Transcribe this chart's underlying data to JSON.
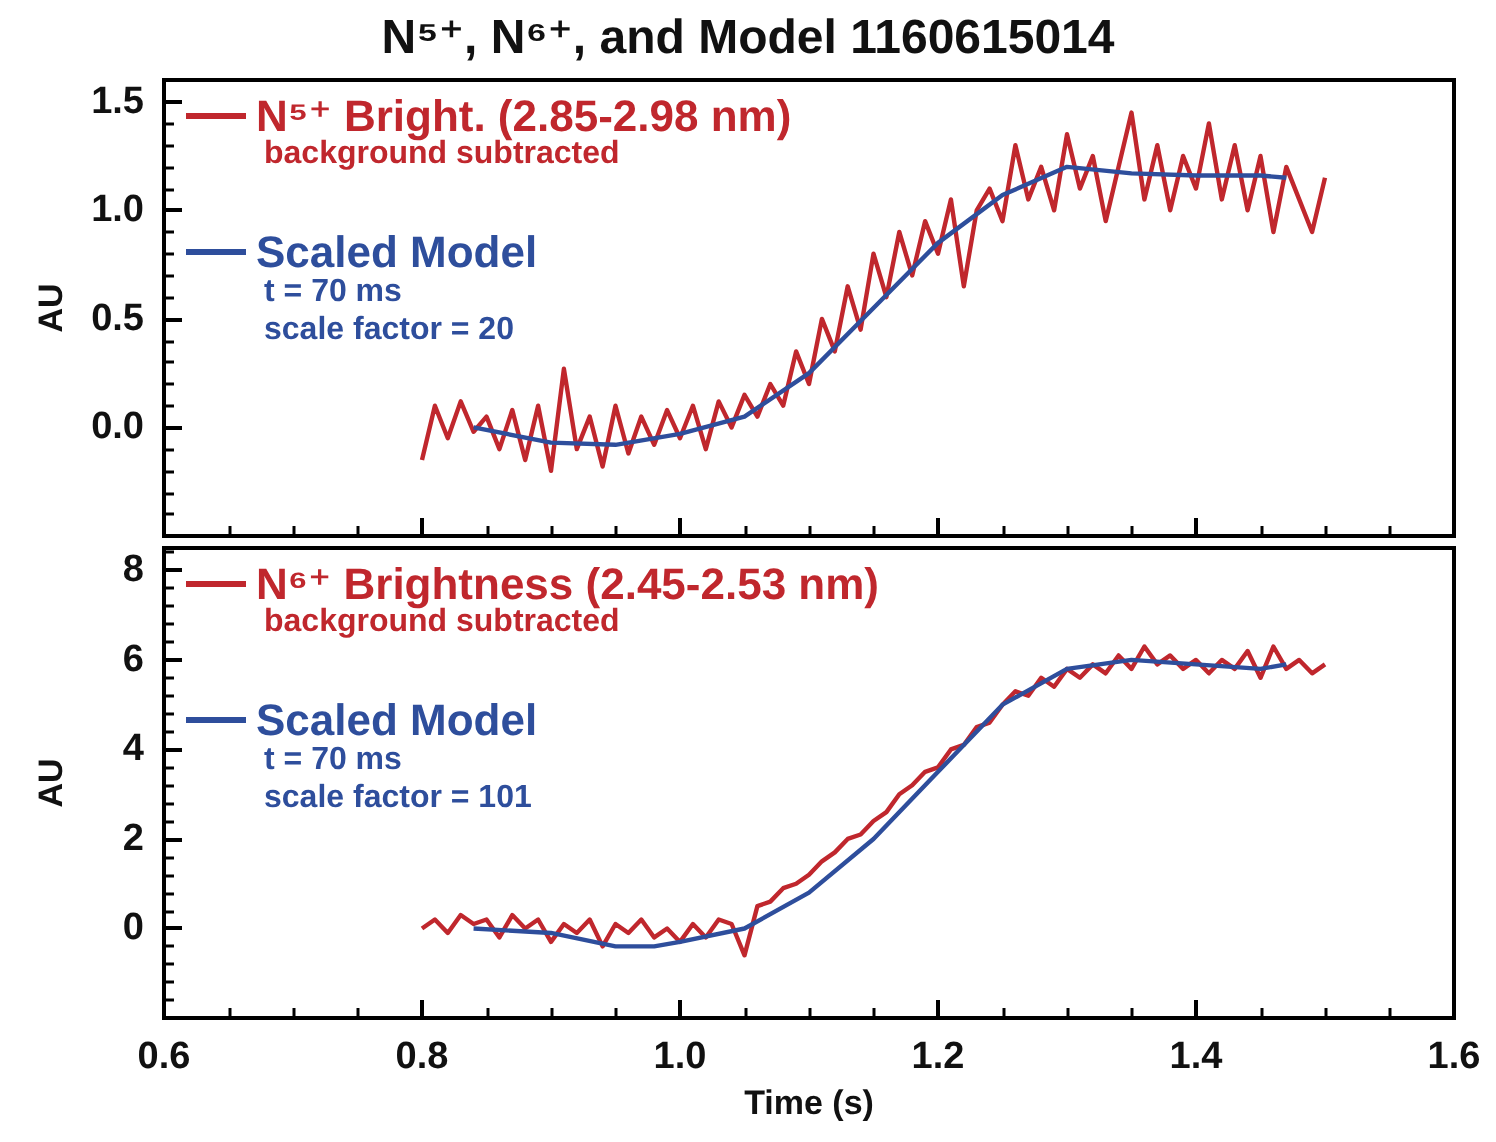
{
  "chart_data": [
    {
      "type": "line",
      "title": "N⁵⁺, N⁶⁺, and Model 1160615014",
      "ylabel": "AU",
      "xlim": [
        0.6,
        1.6
      ],
      "xticks": [
        0.6,
        0.8,
        1,
        1.2,
        1.4,
        1.6
      ],
      "ylim": [
        -0.5,
        1.6
      ],
      "yticks": [
        {
          "value": 0,
          "label": "0.0"
        },
        0.5,
        {
          "value": 1,
          "label": "1.0"
        },
        1.5
      ],
      "tick_labels": "y",
      "grid": false,
      "legend": "top left",
      "marker": "none",
      "line_style": "solid",
      "annotations": [
        "background subtracted",
        "t = 70 ms",
        "scale factor = 20"
      ],
      "series": [
        {
          "name": "N⁵⁺ Bright. (2.85-2.98 nm)",
          "color": "#c0272d",
          "x": [
            0.8,
            0.81,
            0.82,
            0.83,
            0.84,
            0.85,
            0.86,
            0.87,
            0.88,
            0.89,
            0.9,
            0.91,
            0.92,
            0.93,
            0.94,
            0.95,
            0.96,
            0.97,
            0.98,
            0.99,
            1.0,
            1.01,
            1.02,
            1.03,
            1.04,
            1.05,
            1.06,
            1.07,
            1.08,
            1.09,
            1.1,
            1.11,
            1.12,
            1.13,
            1.14,
            1.15,
            1.16,
            1.17,
            1.18,
            1.19,
            1.2,
            1.21,
            1.22,
            1.23,
            1.24,
            1.25,
            1.26,
            1.27,
            1.28,
            1.29,
            1.3,
            1.31,
            1.32,
            1.33,
            1.34,
            1.35,
            1.36,
            1.37,
            1.38,
            1.39,
            1.4,
            1.41,
            1.42,
            1.43,
            1.44,
            1.45,
            1.46,
            1.47,
            1.48,
            1.49,
            1.5
          ],
          "values": [
            -0.15,
            0.1,
            -0.05,
            0.12,
            -0.02,
            0.05,
            -0.1,
            0.08,
            -0.15,
            0.1,
            -0.2,
            0.27,
            -0.1,
            0.05,
            -0.18,
            0.1,
            -0.12,
            0.05,
            -0.08,
            0.08,
            -0.05,
            0.1,
            -0.1,
            0.12,
            0.0,
            0.15,
            0.05,
            0.2,
            0.1,
            0.35,
            0.2,
            0.5,
            0.35,
            0.65,
            0.45,
            0.8,
            0.6,
            0.9,
            0.7,
            0.95,
            0.8,
            1.05,
            0.65,
            1.0,
            1.1,
            0.95,
            1.3,
            1.05,
            1.2,
            1.0,
            1.35,
            1.1,
            1.25,
            0.95,
            1.2,
            1.45,
            1.05,
            1.3,
            1.0,
            1.25,
            1.1,
            1.4,
            1.05,
            1.3,
            1.0,
            1.25,
            0.9,
            1.2,
            1.05,
            0.9,
            1.15
          ]
        },
        {
          "name": "Scaled Model",
          "color": "#2e4e9c",
          "x": [
            0.84,
            0.9,
            0.95,
            1.0,
            1.05,
            1.1,
            1.15,
            1.2,
            1.25,
            1.3,
            1.35,
            1.4,
            1.45,
            1.47
          ],
          "values": [
            0,
            -0.07,
            -0.08,
            -0.03,
            0.05,
            0.25,
            0.55,
            0.85,
            1.07,
            1.2,
            1.17,
            1.16,
            1.16,
            1.15
          ]
        }
      ]
    },
    {
      "type": "line",
      "xlabel": "Time (s)",
      "ylabel": "AU",
      "xlim": [
        0.6,
        1.6
      ],
      "xticks": [
        0.6,
        0.8,
        {
          "value": 1,
          "label": "1.0"
        },
        1.2,
        1.4,
        1.6
      ],
      "ylim": [
        -2,
        8.5
      ],
      "yticks": [
        0,
        2,
        4,
        6,
        8
      ],
      "grid": false,
      "legend": "top left",
      "marker": "none",
      "line_style": "solid",
      "annotations": [
        "background subtracted",
        "t = 70 ms",
        "scale factor = 101"
      ],
      "series": [
        {
          "name": "N⁶⁺ Brightness (2.45-2.53 nm)",
          "color": "#c0272d",
          "x": [
            0.8,
            0.81,
            0.82,
            0.83,
            0.84,
            0.85,
            0.86,
            0.87,
            0.88,
            0.89,
            0.9,
            0.91,
            0.92,
            0.93,
            0.94,
            0.95,
            0.96,
            0.97,
            0.98,
            0.99,
            1.0,
            1.01,
            1.02,
            1.03,
            1.04,
            1.05,
            1.06,
            1.07,
            1.08,
            1.09,
            1.1,
            1.11,
            1.12,
            1.13,
            1.14,
            1.15,
            1.16,
            1.17,
            1.18,
            1.19,
            1.2,
            1.21,
            1.22,
            1.23,
            1.24,
            1.25,
            1.26,
            1.27,
            1.28,
            1.29,
            1.3,
            1.31,
            1.32,
            1.33,
            1.34,
            1.35,
            1.36,
            1.37,
            1.38,
            1.39,
            1.4,
            1.41,
            1.42,
            1.43,
            1.44,
            1.45,
            1.46,
            1.47,
            1.48,
            1.49,
            1.5
          ],
          "values": [
            0,
            0.2,
            -0.1,
            0.3,
            0.1,
            0.2,
            -0.2,
            0.3,
            0.0,
            0.2,
            -0.3,
            0.1,
            -0.1,
            0.2,
            -0.4,
            0.1,
            -0.1,
            0.2,
            -0.2,
            0.0,
            -0.3,
            0.1,
            -0.2,
            0.2,
            0.1,
            -0.6,
            0.5,
            0.6,
            0.9,
            1.0,
            1.2,
            1.5,
            1.7,
            2.0,
            2.1,
            2.4,
            2.6,
            3.0,
            3.2,
            3.5,
            3.6,
            4.0,
            4.1,
            4.5,
            4.6,
            5.0,
            5.3,
            5.2,
            5.6,
            5.4,
            5.8,
            5.6,
            5.9,
            5.7,
            6.1,
            5.8,
            6.3,
            5.9,
            6.1,
            5.8,
            6.0,
            5.7,
            6.0,
            5.8,
            6.2,
            5.6,
            6.3,
            5.8,
            6.0,
            5.7,
            5.9
          ]
        },
        {
          "name": "Scaled Model",
          "color": "#2e4e9c",
          "x": [
            0.84,
            0.9,
            0.95,
            0.98,
            1.0,
            1.05,
            1.1,
            1.15,
            1.2,
            1.25,
            1.3,
            1.35,
            1.4,
            1.45,
            1.47
          ],
          "values": [
            0,
            -0.1,
            -0.4,
            -0.4,
            -0.3,
            0,
            0.8,
            2,
            3.5,
            5,
            5.8,
            6.0,
            5.9,
            5.8,
            5.9
          ]
        }
      ]
    }
  ]
}
